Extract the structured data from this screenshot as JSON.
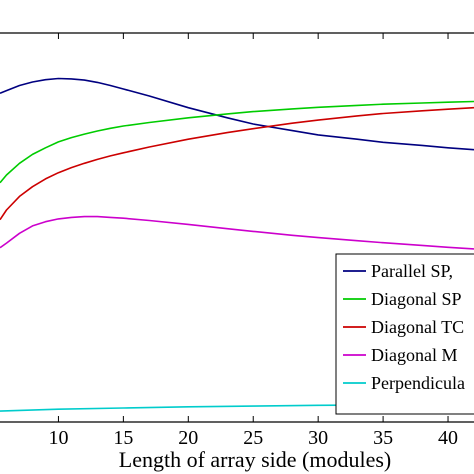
{
  "chart_data": {
    "type": "line",
    "xlabel": "Length of array side (modules)",
    "ylabel": "",
    "title": "",
    "xlim": [
      5.5,
      42
    ],
    "ylim": [
      0,
      1
    ],
    "x_ticks": [
      10,
      15,
      20,
      25,
      30,
      35,
      40
    ],
    "x_tick_labels": [
      "10",
      "15",
      "20",
      "25",
      "30",
      "35",
      "40"
    ],
    "grid": false,
    "legend_position": "bottom-right",
    "series": [
      {
        "name": "Parallel SP,",
        "color": "#000080",
        "x": [
          5.5,
          6,
          7,
          8,
          9,
          10,
          11,
          12,
          13,
          14,
          15,
          17,
          20,
          23,
          25,
          28,
          30,
          33,
          35,
          38,
          40,
          42
        ],
        "y": [
          0.845,
          0.852,
          0.865,
          0.874,
          0.88,
          0.883,
          0.882,
          0.879,
          0.873,
          0.865,
          0.856,
          0.838,
          0.808,
          0.782,
          0.766,
          0.749,
          0.738,
          0.727,
          0.719,
          0.711,
          0.705,
          0.7
        ]
      },
      {
        "name": "Diagonal SP",
        "color": "#00cc00",
        "x": [
          5.5,
          6,
          7,
          8,
          9,
          10,
          11,
          12,
          13,
          14,
          15,
          17,
          20,
          23,
          25,
          28,
          30,
          33,
          35,
          38,
          40,
          42
        ],
        "y": [
          0.615,
          0.635,
          0.665,
          0.688,
          0.705,
          0.72,
          0.731,
          0.74,
          0.748,
          0.755,
          0.761,
          0.77,
          0.782,
          0.792,
          0.798,
          0.805,
          0.809,
          0.814,
          0.817,
          0.82,
          0.822,
          0.824
        ]
      },
      {
        "name": "Diagonal TC",
        "color": "#cc0000",
        "x": [
          5.5,
          6,
          7,
          8,
          9,
          10,
          11,
          12,
          13,
          14,
          15,
          17,
          20,
          23,
          25,
          28,
          30,
          33,
          35,
          38,
          40,
          42
        ],
        "y": [
          0.52,
          0.545,
          0.58,
          0.605,
          0.625,
          0.641,
          0.654,
          0.665,
          0.675,
          0.684,
          0.692,
          0.707,
          0.727,
          0.744,
          0.754,
          0.768,
          0.776,
          0.787,
          0.793,
          0.8,
          0.804,
          0.808
        ]
      },
      {
        "name": "Diagonal M",
        "color": "#cc00cc",
        "x": [
          5.5,
          6,
          7,
          8,
          9,
          10,
          11,
          12,
          13,
          14,
          15,
          17,
          20,
          23,
          25,
          28,
          30,
          33,
          35,
          38,
          40,
          42
        ],
        "y": [
          0.448,
          0.46,
          0.485,
          0.504,
          0.515,
          0.522,
          0.526,
          0.528,
          0.528,
          0.526,
          0.524,
          0.518,
          0.508,
          0.497,
          0.49,
          0.48,
          0.474,
          0.466,
          0.461,
          0.454,
          0.449,
          0.445
        ]
      },
      {
        "name": "Perpendicula",
        "color": "#00cccc",
        "x": [
          5.5,
          10,
          15,
          20,
          25,
          30,
          35,
          40,
          42
        ],
        "y": [
          0.028,
          0.033,
          0.036,
          0.039,
          0.041,
          0.043,
          0.044,
          0.045,
          0.046
        ]
      }
    ]
  }
}
